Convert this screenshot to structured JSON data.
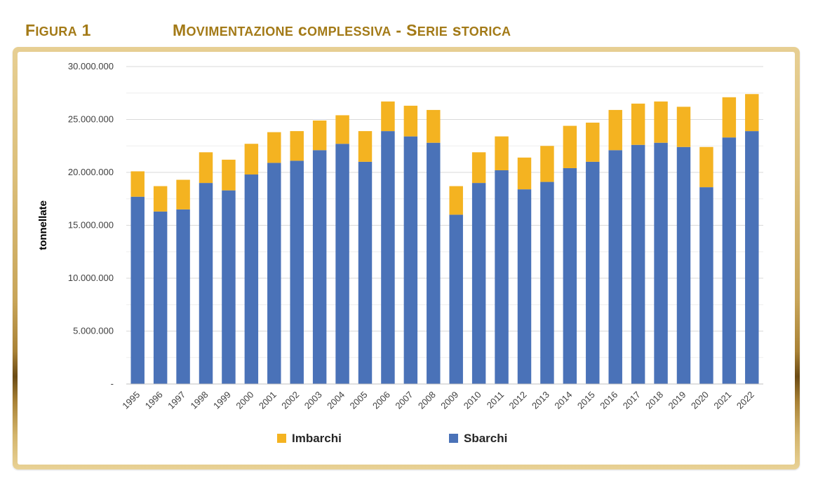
{
  "header": {
    "figure_label": "Figura 1",
    "title": "Movimentazione complessiva - Serie storica"
  },
  "colors": {
    "sbarchi": "#4a72b8",
    "imbarchi": "#f4b321",
    "gold": "#a37a17",
    "grid": "#d9d9d9"
  },
  "chart_data": {
    "type": "bar",
    "stacked": true,
    "ylabel": "tonnellate",
    "ylim": [
      0,
      30000000
    ],
    "yticks": [
      0,
      5000000,
      10000000,
      15000000,
      20000000,
      25000000,
      30000000
    ],
    "ytick_labels": [
      "-",
      "5.000.000",
      "10.000.000",
      "15.000.000",
      "20.000.000",
      "25.000.000",
      "30.000.000"
    ],
    "grid": true,
    "legend_position": "bottom",
    "categories": [
      "1995",
      "1996",
      "1997",
      "1998",
      "1999",
      "2000",
      "2001",
      "2002",
      "2003",
      "2004",
      "2005",
      "2006",
      "2007",
      "2008",
      "2009",
      "2010",
      "2011",
      "2012",
      "2013",
      "2014",
      "2015",
      "2016",
      "2017",
      "2018",
      "2019",
      "2020",
      "2021",
      "2022"
    ],
    "series": [
      {
        "name": "Sbarchi",
        "color": "#4a72b8",
        "values": [
          17700000,
          16300000,
          16500000,
          19000000,
          18300000,
          19800000,
          20900000,
          21100000,
          22100000,
          22700000,
          21000000,
          23900000,
          23400000,
          22800000,
          16000000,
          19000000,
          20200000,
          18400000,
          19100000,
          20400000,
          21000000,
          22100000,
          22600000,
          22800000,
          22400000,
          18600000,
          23300000,
          23900000
        ]
      },
      {
        "name": "Imbarchi",
        "color": "#f4b321",
        "values": [
          2400000,
          2400000,
          2800000,
          2900000,
          2900000,
          2900000,
          2900000,
          2800000,
          2800000,
          2700000,
          2900000,
          2800000,
          2900000,
          3100000,
          2700000,
          2900000,
          3200000,
          3000000,
          3400000,
          4000000,
          3700000,
          3800000,
          3900000,
          3900000,
          3800000,
          3800000,
          3800000,
          3500000
        ]
      }
    ],
    "legend": [
      {
        "name": "Imbarchi",
        "color": "#f4b321"
      },
      {
        "name": "Sbarchi",
        "color": "#4a72b8"
      }
    ]
  }
}
